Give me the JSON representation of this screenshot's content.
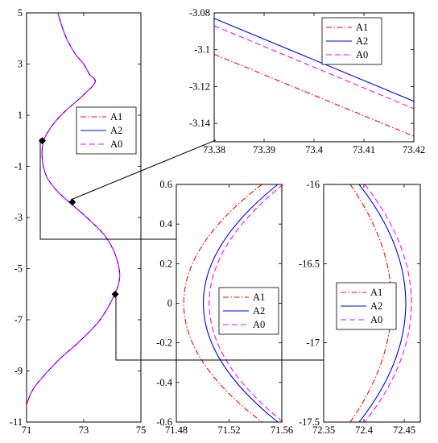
{
  "colors": {
    "A1": "#ff0000",
    "A2": "#0000ff",
    "A0": "#ff00ff"
  },
  "chart_data": [
    {
      "type": "line",
      "xlim": [
        71,
        75
      ],
      "ylim": [
        -11,
        5
      ],
      "xticks": [
        71,
        73,
        75
      ],
      "yticks": [
        5,
        3,
        1,
        -1,
        -3,
        -5,
        -7,
        -9,
        -11
      ],
      "legend": [
        "A1",
        "A2",
        "A0"
      ],
      "legend_position": "center",
      "series": [
        {
          "name": "A1",
          "style": "dash-dot",
          "color": "#ff0000"
        },
        {
          "name": "A2",
          "style": "solid",
          "color": "#0000ff"
        },
        {
          "name": "A0",
          "style": "dashed",
          "color": "#ff00ff"
        }
      ],
      "x": [
        72.1,
        72.2,
        72.4,
        72.7,
        73.0,
        73.2,
        73.4,
        73.0,
        72.3,
        71.9,
        71.6,
        71.55,
        71.7,
        72.1,
        72.7,
        73.3,
        73.8,
        74.15,
        74.25,
        74.0,
        73.5,
        72.8,
        72.1,
        71.3,
        71.0
      ],
      "y": [
        5.0,
        4.6,
        4.0,
        3.4,
        3.0,
        2.6,
        2.3,
        1.8,
        1.1,
        0.6,
        0.0,
        -0.7,
        -1.4,
        -2.0,
        -2.6,
        -3.2,
        -3.8,
        -4.6,
        -5.4,
        -6.2,
        -7.1,
        -7.9,
        -8.6,
        -9.6,
        -10.3
      ],
      "markers": [
        {
          "x": 71.55,
          "y": 0.0
        },
        {
          "x": 72.6,
          "y": -2.4
        },
        {
          "x": 74.1,
          "y": -6.0
        }
      ]
    },
    {
      "type": "line",
      "xlim": [
        73.38,
        73.42
      ],
      "ylim": [
        -3.15,
        -3.08
      ],
      "xticks": [
        "73.38",
        "73.39",
        "73.4",
        "73.41",
        "73.42"
      ],
      "yticks": [
        "-3.08",
        "-3.1",
        "-3.12",
        "-3.14"
      ],
      "legend": [
        "A1",
        "A2",
        "A0"
      ],
      "legend_position": "top-right",
      "series": [
        {
          "name": "A1",
          "x": [
            73.38,
            73.42
          ],
          "y": [
            -3.1025,
            -3.147
          ]
        },
        {
          "name": "A2",
          "x": [
            73.38,
            73.42
          ],
          "y": [
            -3.083,
            -3.128
          ]
        },
        {
          "name": "A0",
          "x": [
            73.38,
            73.42
          ],
          "y": [
            -3.087,
            -3.132
          ]
        }
      ]
    },
    {
      "type": "line",
      "xlim": [
        71.48,
        71.56
      ],
      "ylim": [
        -0.6,
        0.6
      ],
      "xticks": [
        "71.48",
        "71.52",
        "71.56"
      ],
      "yticks": [
        "0.6",
        "0.4",
        "0.2",
        "0",
        "-0.2",
        "-0.4",
        "-0.6"
      ],
      "legend": [
        "A1",
        "A2",
        "A0"
      ],
      "legend_position": "bottom-right",
      "series": [
        {
          "name": "A1",
          "vertex_x": 71.4825,
          "edge_x": 71.545,
          "ylim_edge": 0.6
        },
        {
          "name": "A2",
          "vertex_x": 71.4975,
          "edge_x": 71.557,
          "ylim_edge": 0.6
        },
        {
          "name": "A0",
          "vertex_x": 71.502,
          "edge_x": 71.561,
          "ylim_edge": 0.6
        }
      ]
    },
    {
      "type": "line",
      "xlim": [
        72.35,
        72.47
      ],
      "ylim": [
        -17.5,
        -16
      ],
      "xticks": [
        "72.35",
        "72.4",
        "72.45"
      ],
      "yticks": [
        "-16",
        "-16.5",
        "-17",
        "-17.5"
      ],
      "legend": [
        "A1",
        "A2",
        "A0"
      ],
      "legend_position": "center-left",
      "series": [
        {
          "name": "A1",
          "vertex_x": 72.437,
          "edge_x": 72.383,
          "center_y": -16.75
        },
        {
          "name": "A2",
          "vertex_x": 72.455,
          "edge_x": 72.394,
          "center_y": -16.75
        },
        {
          "name": "A0",
          "vertex_x": 72.462,
          "edge_x": 72.401,
          "center_y": -16.75
        }
      ]
    }
  ]
}
